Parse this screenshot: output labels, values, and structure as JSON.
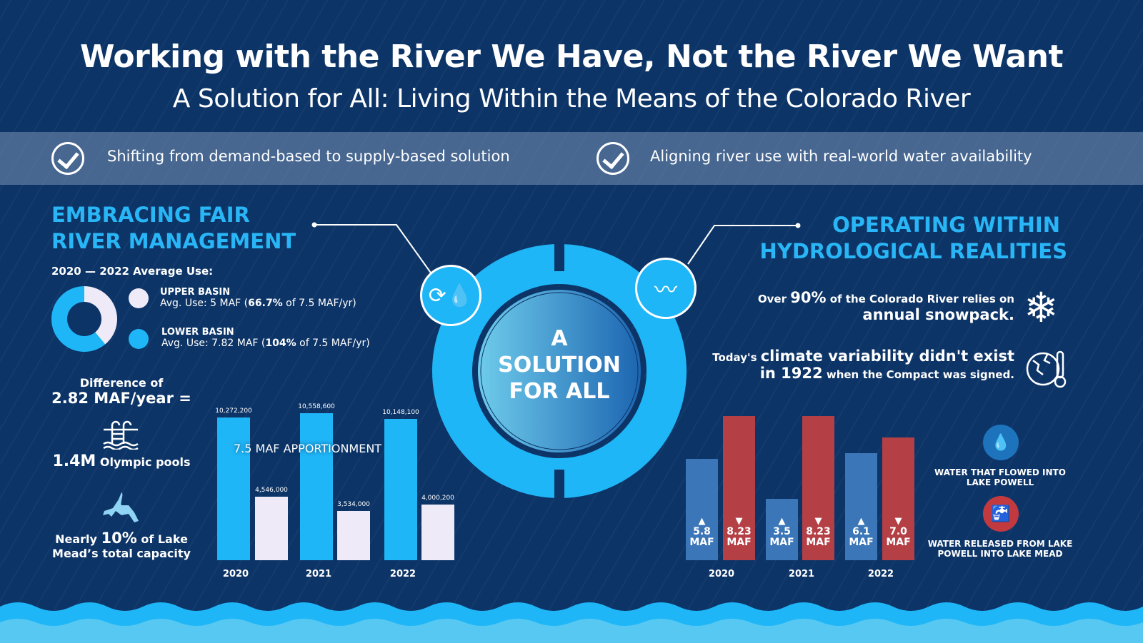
{
  "title": "Working with the River We Have, Not the River We Want",
  "subtitle": "A Solution for All: Living Within the Means of the Colorado River",
  "band": {
    "items": [
      {
        "icon": "check-circle-icon",
        "text": "Shifting from demand-based to supply-based solution"
      },
      {
        "icon": "check-circle-icon",
        "text": "Aligning river use with real-world water availability"
      }
    ]
  },
  "left": {
    "heading_line1": "EMBRACING FAIR",
    "heading_line2": "RIVER MANAGEMENT",
    "avg_label": "2020 — 2022 Average Use:",
    "upper": {
      "name": "UPPER BASIN",
      "pre": "Avg. Use: 5 MAF (",
      "pct": "66.7%",
      "post": " of 7.5 MAF/yr)"
    },
    "lower": {
      "name": "LOWER BASIN",
      "pre": "Avg. Use: 7.82 MAF (",
      "pct": "104%",
      "post": " of 7.5 MAF/yr)"
    },
    "difference_line1": "Difference of",
    "difference_line2": "2.82 MAF/year =",
    "pools_value": "1.4M",
    "pools_text": " Olympic pools",
    "mead_pre": "Nearly ",
    "mead_pct": "10%",
    "mead_post": " of Lake",
    "mead_line2": "Mead’s total capacity"
  },
  "center": {
    "line1": "A",
    "line2": "SOLUTION",
    "line3": "FOR ALL"
  },
  "right": {
    "heading_line1": "OPERATING WITHIN",
    "heading_line2": "HYDROLOGICAL REALITIES",
    "snow_pre": "Over ",
    "snow_pct": "90%",
    "snow_mid": " of the Colorado River relies on",
    "snow_line2": "annual snowpack.",
    "climate_pre": "Today's ",
    "climate_big": "climate variability didn't exist",
    "climate_big2": "in 1922",
    "climate_post": " when the Compact was signed.",
    "legend_inflow": "WATER THAT FLOWED INTO LAKE POWELL",
    "legend_release": "WATER RELEASED FROM LAKE POWELL INTO LAKE MEAD"
  },
  "colors": {
    "background": "#0c3467",
    "accent": "#1fb6f7",
    "light": "#efeaf8",
    "inflow": "#3b76b8",
    "release": "#b44046"
  },
  "chart_data": [
    {
      "type": "pie",
      "subtype": "donut",
      "categories": [
        "UPPER BASIN",
        "LOWER BASIN"
      ],
      "values": [
        5,
        7.82
      ]
    },
    {
      "type": "bar",
      "categories": [
        "2020",
        "2021",
        "2022"
      ],
      "annotation": "7.5 MAF APPORTIONMENT",
      "series": [
        {
          "values": [
            10272200,
            10558600,
            10148100
          ],
          "labels": [
            "10,272,200",
            "10,558,600",
            "10,148,100"
          ],
          "color": "#1fb6f7"
        },
        {
          "values": [
            4546000,
            3534000,
            4000200
          ],
          "labels": [
            "4,546,000",
            "3,534,000",
            "4,000,200"
          ],
          "color": "#efeaf8"
        }
      ]
    },
    {
      "type": "bar",
      "categories": [
        "2020",
        "2021",
        "2022"
      ],
      "series": [
        {
          "name": "WATER THAT FLOWED INTO LAKE POWELL",
          "values": [
            5.8,
            3.5,
            6.1
          ],
          "labels": [
            "5.8",
            "3.5",
            "6.1"
          ],
          "unit": "MAF",
          "color": "#3b76b8"
        },
        {
          "name": "WATER RELEASED FROM LAKE POWELL INTO LAKE MEAD",
          "values": [
            8.23,
            8.23,
            7.0
          ],
          "labels": [
            "8.23",
            "8.23",
            "7.0"
          ],
          "unit": "MAF",
          "color": "#b44046"
        }
      ]
    }
  ]
}
